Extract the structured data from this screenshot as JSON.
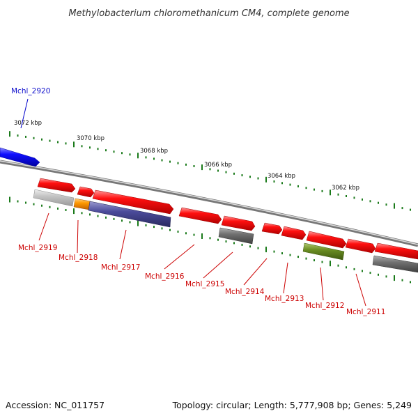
{
  "title": "Methylobacterium chloromethanicum CM4, complete genome",
  "footer": {
    "accession": "Accession: NC_011757",
    "summary": "Topology: circular; Length: 5,777,908 bp; Genes: 5,249"
  },
  "kbp_labels": [
    "3072 kbp",
    "3070 kbp",
    "3068 kbp",
    "3066 kbp",
    "3064 kbp",
    "3062 kbp"
  ],
  "genes": [
    {
      "id": "Mchl_2920",
      "color": "#1010e0",
      "strand": "outer"
    },
    {
      "id": "Mchl_2919",
      "color": "#c00000",
      "strand": "inner"
    },
    {
      "id": "Mchl_2918",
      "color": "#c00000",
      "strand": "inner"
    },
    {
      "id": "Mchl_2917",
      "color": "#c00000",
      "strand": "inner"
    },
    {
      "id": "Mchl_2916",
      "color": "#c00000",
      "strand": "inner"
    },
    {
      "id": "Mchl_2915",
      "color": "#c00000",
      "strand": "inner"
    },
    {
      "id": "Mchl_2914",
      "color": "#c00000",
      "strand": "inner"
    },
    {
      "id": "Mchl_2913",
      "color": "#c00000",
      "strand": "inner"
    },
    {
      "id": "Mchl_2912",
      "color": "#c00000",
      "strand": "inner"
    },
    {
      "id": "Mchl_2911",
      "color": "#c00000",
      "strand": "inner"
    }
  ],
  "colors": {
    "forward_gene": "#ff0000",
    "reverse_gene_blue": "#0000ff",
    "rna_gray": "#808080",
    "rna_light": "#bbbbbb",
    "orange": "#ff9900",
    "purple": "#4b4b9a",
    "olive": "#6b8e23",
    "tick_green": "#1a7a1a",
    "backbone": "#888888"
  }
}
